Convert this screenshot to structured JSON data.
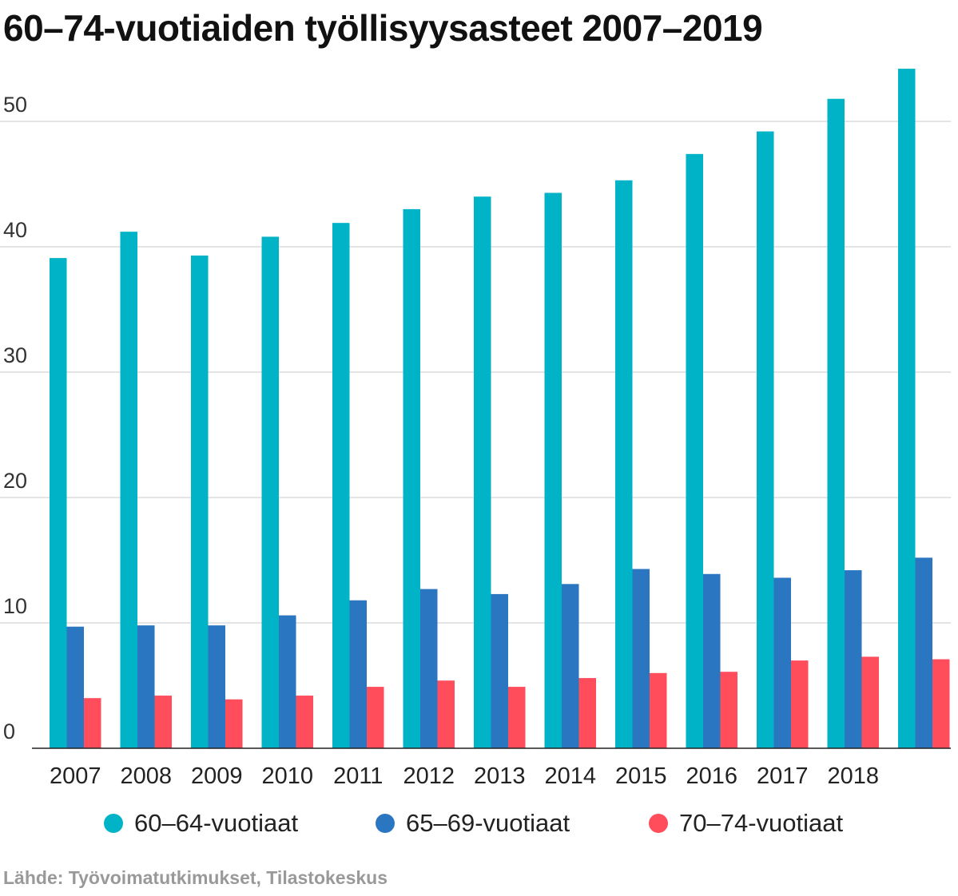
{
  "chart_data": {
    "type": "bar",
    "title": "60–74-vuotiaiden työllisyysasteet 2007–2019",
    "categories": [
      "2007",
      "2008",
      "2009",
      "2010",
      "2011",
      "2012",
      "2013",
      "2014",
      "2015",
      "2016",
      "2017",
      "2018",
      ""
    ],
    "series": [
      {
        "name": "60–64-vuotiaat",
        "color": "#00b3c6",
        "values": [
          39.1,
          41.2,
          39.3,
          40.8,
          41.9,
          43.0,
          44.0,
          44.3,
          45.3,
          47.4,
          49.2,
          51.8,
          54.2
        ]
      },
      {
        "name": "65–69-vuotiaat",
        "color": "#2b76c0",
        "values": [
          9.7,
          9.8,
          9.8,
          10.6,
          11.8,
          12.7,
          12.3,
          13.1,
          14.3,
          13.9,
          13.6,
          14.2,
          15.2
        ]
      },
      {
        "name": "70–74-vuotiaat",
        "color": "#ff4d5c",
        "values": [
          4.0,
          4.2,
          3.9,
          4.2,
          4.9,
          5.4,
          4.9,
          5.6,
          6.0,
          6.1,
          7.0,
          7.3,
          7.1
        ]
      }
    ],
    "yticks": [
      0,
      10,
      20,
      30,
      40,
      50
    ],
    "ylim": [
      0,
      54.5
    ],
    "xlabel": "",
    "ylabel": "",
    "grid": true,
    "legend_position": "bottom"
  },
  "source": "Lähde: Työvoimatutkimukset, Tilastokeskus"
}
